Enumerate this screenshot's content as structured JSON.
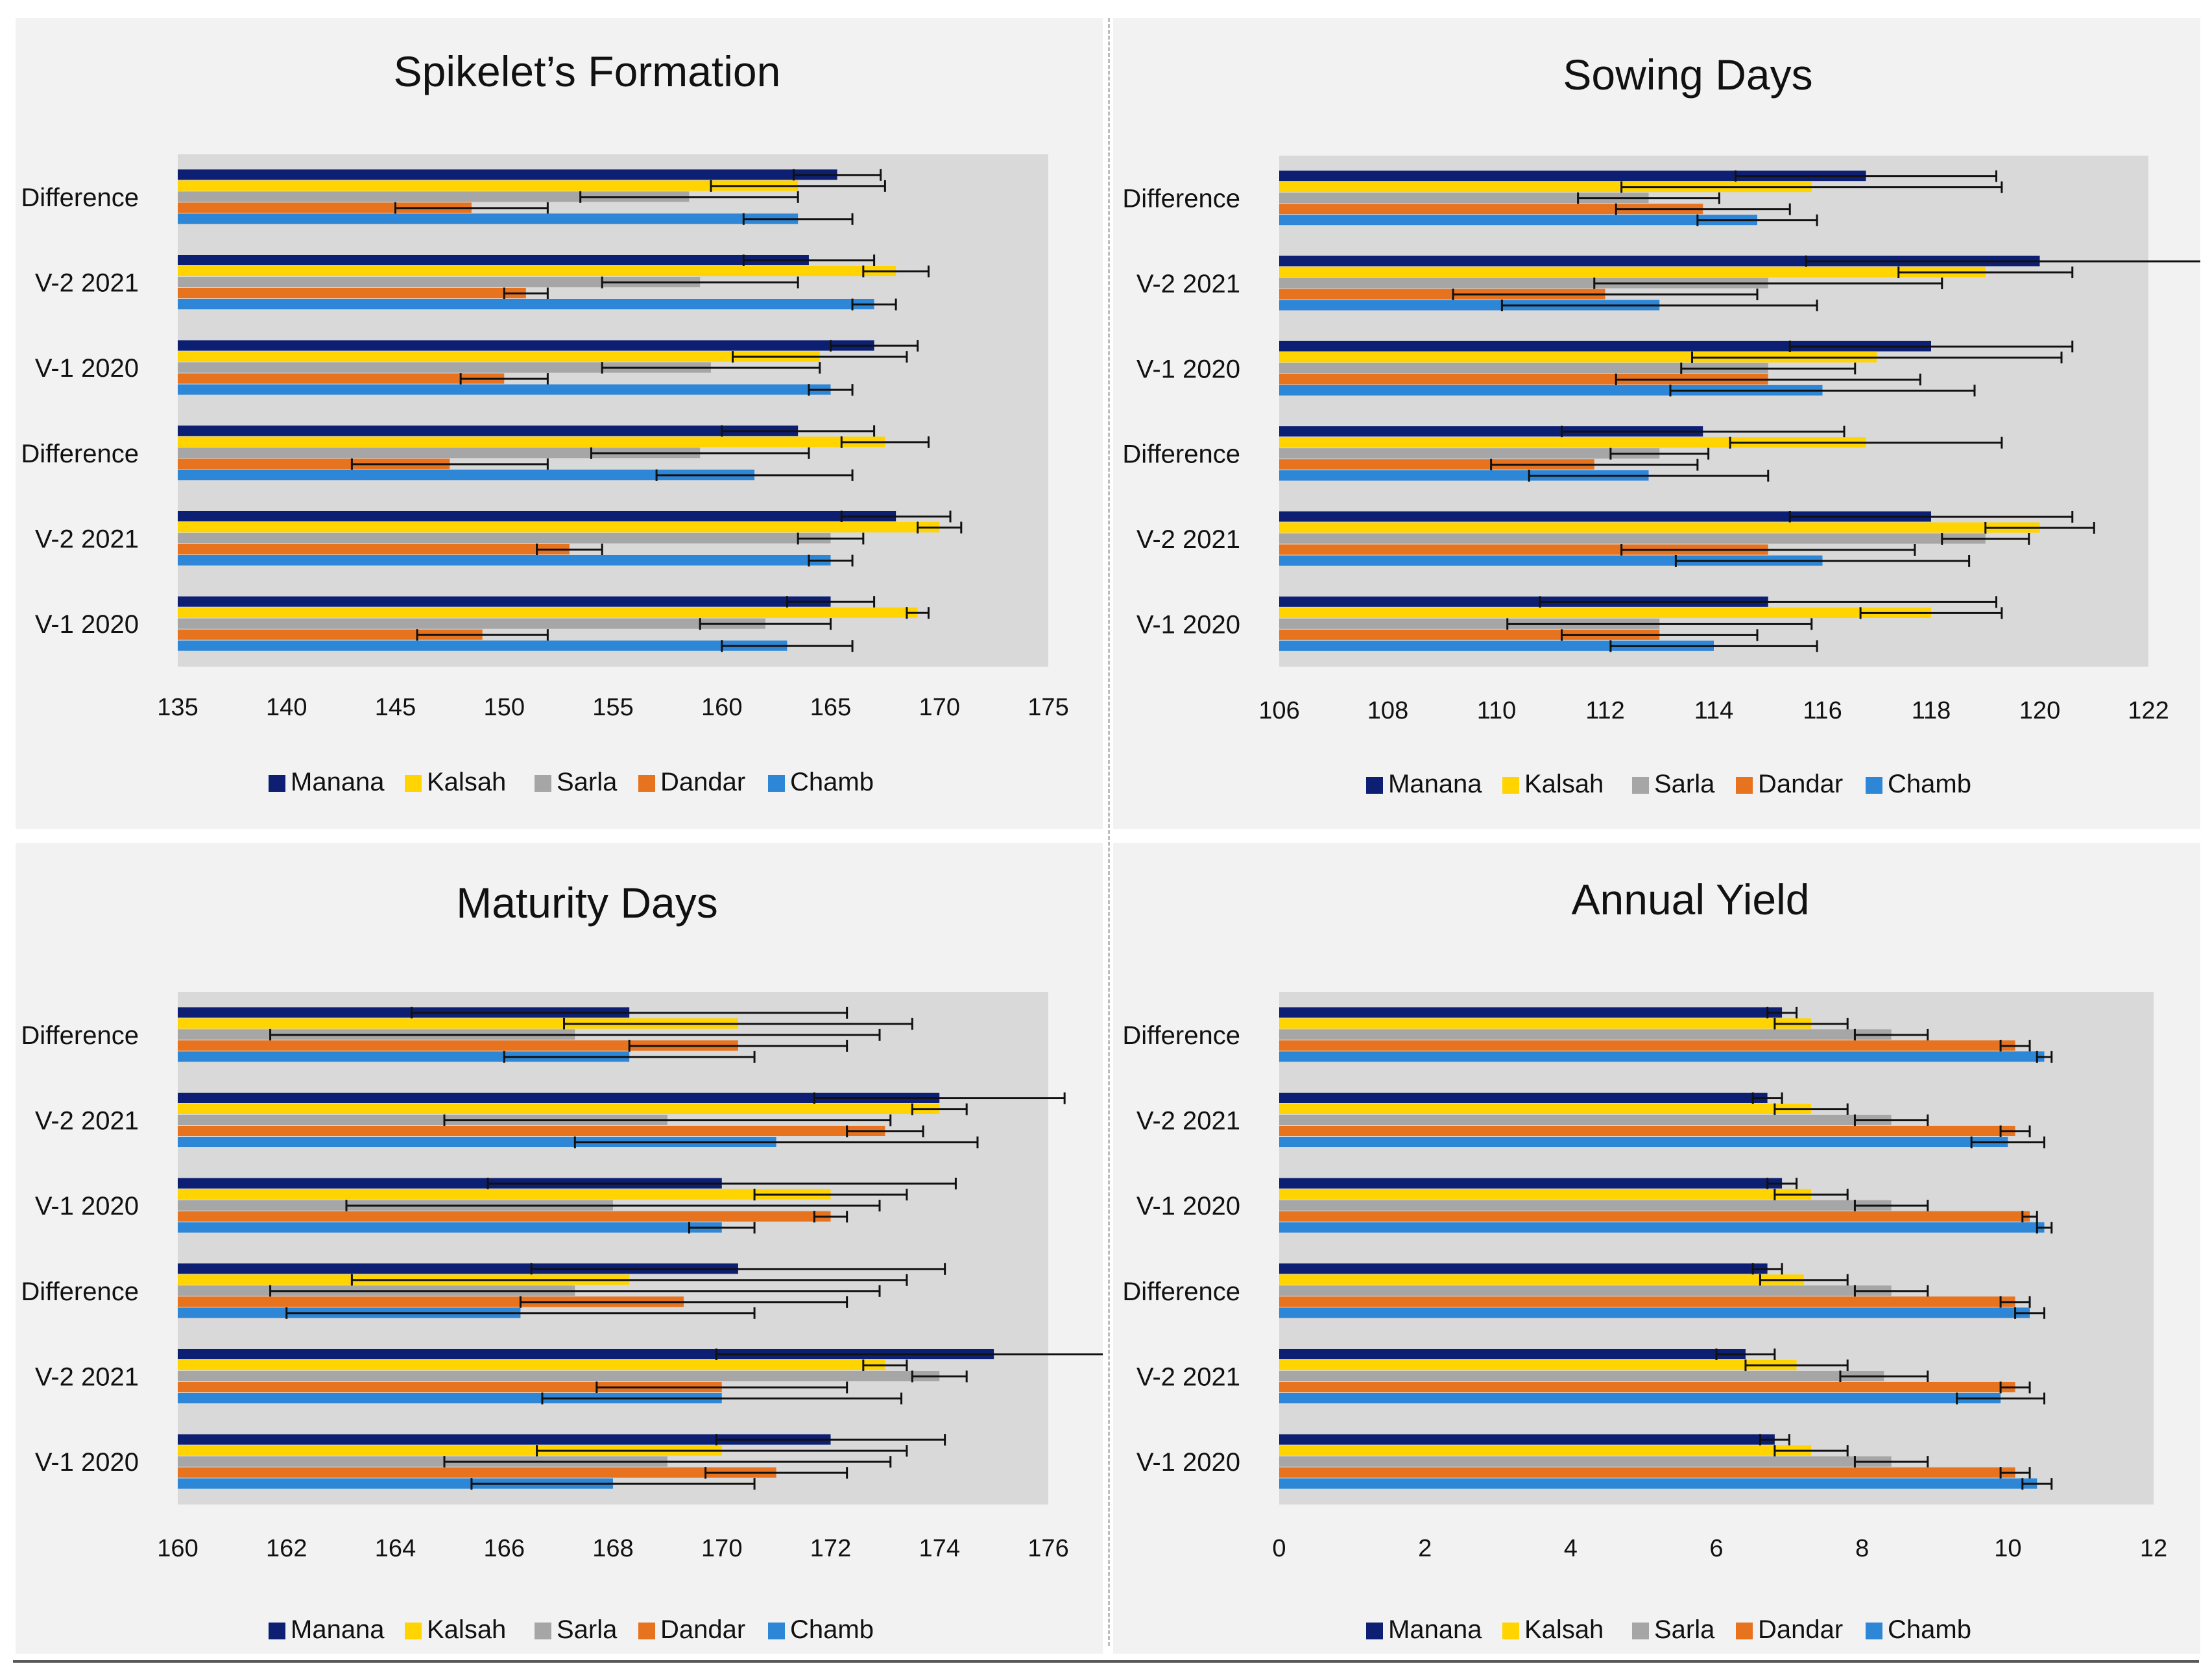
{
  "colors": {
    "Manana": "#0d1f73",
    "Kalsah": "#ffd400",
    "Sarla": "#a6a6a6",
    "Dandar": "#e8731f",
    "Chamb": "#2e86d6",
    "plot_bg": "#d9d9d9",
    "panel_bg": "#f2f2f2"
  },
  "chart_data": [
    {
      "id": "spikelet",
      "type": "bar",
      "orientation": "horizontal",
      "title": "Spikelet’s Formation",
      "categories": [
        "Difference",
        "V-2 2021",
        "V-1 2020",
        "Difference",
        "V-2 2021",
        "V-1 2020"
      ],
      "xlim": [
        135,
        175
      ],
      "xticks": [
        135,
        140,
        145,
        150,
        155,
        160,
        165,
        170,
        175
      ],
      "series": [
        {
          "name": "Manana",
          "values": [
            165.3,
            164,
            167,
            163.5,
            168,
            165
          ]
        },
        {
          "name": "Kalsah",
          "values": [
            163.5,
            168,
            164.5,
            167.5,
            170,
            169
          ]
        },
        {
          "name": "Sarla",
          "values": [
            158.5,
            159,
            159.5,
            159,
            165,
            162
          ]
        },
        {
          "name": "Dandar",
          "values": [
            148.5,
            151,
            150,
            147.5,
            153,
            149
          ]
        },
        {
          "name": "Chamb",
          "values": [
            163.5,
            167,
            165,
            161.5,
            165,
            163
          ]
        }
      ],
      "errors": [
        {
          "name": "Manana",
          "values": [
            2,
            3,
            2,
            3.5,
            2.5,
            2
          ]
        },
        {
          "name": "Kalsah",
          "values": [
            4,
            1.5,
            4,
            2,
            1,
            0.5
          ]
        },
        {
          "name": "Sarla",
          "values": [
            5,
            4.5,
            5,
            5,
            1.5,
            3
          ]
        },
        {
          "name": "Dandar",
          "values": [
            3.5,
            1,
            2,
            4.5,
            1.5,
            3
          ]
        },
        {
          "name": "Chamb",
          "values": [
            2.5,
            1,
            1,
            4.5,
            1,
            3
          ]
        }
      ],
      "legend": [
        "Manana",
        "Kalsah",
        "Sarla",
        "Dandar",
        "Chamb"
      ]
    },
    {
      "id": "sowing",
      "type": "bar",
      "orientation": "horizontal",
      "title": "Sowing Days",
      "categories": [
        "Difference",
        "V-2 2021",
        "V-1 2020",
        "Difference",
        "V-2 2021",
        "V-1 2020"
      ],
      "xlim": [
        106,
        122
      ],
      "xticks": [
        106,
        108,
        110,
        112,
        114,
        116,
        118,
        120,
        122
      ],
      "series": [
        {
          "name": "Manana",
          "values": [
            116.8,
            120,
            118,
            113.8,
            118,
            115
          ]
        },
        {
          "name": "Kalsah",
          "values": [
            115.8,
            119,
            117,
            116.8,
            120,
            118
          ]
        },
        {
          "name": "Sarla",
          "values": [
            112.8,
            115,
            115,
            113,
            119,
            113
          ]
        },
        {
          "name": "Dandar",
          "values": [
            113.8,
            112,
            115,
            111.8,
            115,
            113
          ]
        },
        {
          "name": "Chamb",
          "values": [
            114.8,
            113,
            116,
            112.8,
            116,
            114
          ]
        }
      ],
      "errors": [
        {
          "name": "Manana",
          "values": [
            2.4,
            4.3,
            2.6,
            2.6,
            2.6,
            4.2
          ]
        },
        {
          "name": "Kalsah",
          "values": [
            3.5,
            1.6,
            3.4,
            2.5,
            1.0,
            1.3
          ]
        },
        {
          "name": "Sarla",
          "values": [
            1.3,
            3.2,
            1.6,
            0.9,
            0.8,
            2.8
          ]
        },
        {
          "name": "Dandar",
          "values": [
            1.6,
            2.8,
            2.8,
            1.9,
            2.7,
            1.8
          ]
        },
        {
          "name": "Chamb",
          "values": [
            1.1,
            2.9,
            2.8,
            2.2,
            2.7,
            1.9
          ]
        }
      ],
      "legend": [
        "Manana",
        "Kalsah",
        "Sarla",
        "Dandar",
        "Chamb"
      ]
    },
    {
      "id": "maturity",
      "type": "bar",
      "orientation": "horizontal",
      "title": "Maturity Days",
      "categories": [
        "Difference",
        "V-2 2021",
        "V-1 2020",
        "Difference",
        "V-2 2021",
        "V-1 2020"
      ],
      "xlim": [
        160,
        176
      ],
      "xticks": [
        160,
        162,
        164,
        166,
        168,
        170,
        172,
        174,
        176
      ],
      "series": [
        {
          "name": "Manana",
          "values": [
            168.3,
            174,
            170,
            170.3,
            175,
            172
          ]
        },
        {
          "name": "Kalsah",
          "values": [
            170.3,
            174,
            172,
            168.3,
            173,
            170
          ]
        },
        {
          "name": "Sarla",
          "values": [
            167.3,
            169,
            168,
            167.3,
            174,
            169
          ]
        },
        {
          "name": "Dandar",
          "values": [
            170.3,
            173,
            172,
            169.3,
            170,
            171
          ]
        },
        {
          "name": "Chamb",
          "values": [
            168.3,
            171,
            170,
            166.3,
            170,
            168
          ]
        }
      ],
      "errors": [
        {
          "name": "Manana",
          "values": [
            4,
            2.3,
            4.3,
            3.8,
            5.1,
            2.1
          ]
        },
        {
          "name": "Kalsah",
          "values": [
            3.2,
            0.5,
            1.4,
            5.1,
            0.4,
            3.4
          ]
        },
        {
          "name": "Sarla",
          "values": [
            5.6,
            4.1,
            4.9,
            5.6,
            0.5,
            4.1
          ]
        },
        {
          "name": "Dandar",
          "values": [
            2,
            0.7,
            0.3,
            3,
            2.3,
            1.3
          ]
        },
        {
          "name": "Chamb",
          "values": [
            2.3,
            3.7,
            0.6,
            4.3,
            3.3,
            2.6
          ]
        }
      ],
      "legend": [
        "Manana",
        "Kalsah",
        "Sarla",
        "Dandar",
        "Chamb"
      ]
    },
    {
      "id": "yield",
      "type": "bar",
      "orientation": "horizontal",
      "title": "Annual Yield",
      "categories": [
        "Difference",
        "V-2 2021",
        "V-1 2020",
        "Difference",
        "V-2 2021",
        "V-1 2020"
      ],
      "xlim": [
        0,
        12
      ],
      "xticks": [
        0,
        2,
        4,
        6,
        8,
        10,
        12
      ],
      "series": [
        {
          "name": "Manana",
          "values": [
            6.9,
            6.7,
            6.9,
            6.7,
            6.4,
            6.8
          ]
        },
        {
          "name": "Kalsah",
          "values": [
            7.3,
            7.3,
            7.3,
            7.2,
            7.1,
            7.3
          ]
        },
        {
          "name": "Sarla",
          "values": [
            8.4,
            8.4,
            8.4,
            8.4,
            8.3,
            8.4
          ]
        },
        {
          "name": "Dandar",
          "values": [
            10.1,
            10.1,
            10.3,
            10.1,
            10.1,
            10.1
          ]
        },
        {
          "name": "Chamb",
          "values": [
            10.5,
            10,
            10.5,
            10.3,
            9.9,
            10.4
          ]
        }
      ],
      "errors": [
        {
          "name": "Manana",
          "values": [
            0.2,
            0.2,
            0.2,
            0.2,
            0.4,
            0.2
          ]
        },
        {
          "name": "Kalsah",
          "values": [
            0.5,
            0.5,
            0.5,
            0.6,
            0.7,
            0.5
          ]
        },
        {
          "name": "Sarla",
          "values": [
            0.5,
            0.5,
            0.5,
            0.5,
            0.6,
            0.5
          ]
        },
        {
          "name": "Dandar",
          "values": [
            0.2,
            0.2,
            0.1,
            0.2,
            0.2,
            0.2
          ]
        },
        {
          "name": "Chamb",
          "values": [
            0.1,
            0.5,
            0.1,
            0.2,
            0.6,
            0.2
          ]
        }
      ],
      "legend": [
        "Manana",
        "Kalsah",
        "Sarla",
        "Dandar",
        "Chamb"
      ]
    }
  ]
}
